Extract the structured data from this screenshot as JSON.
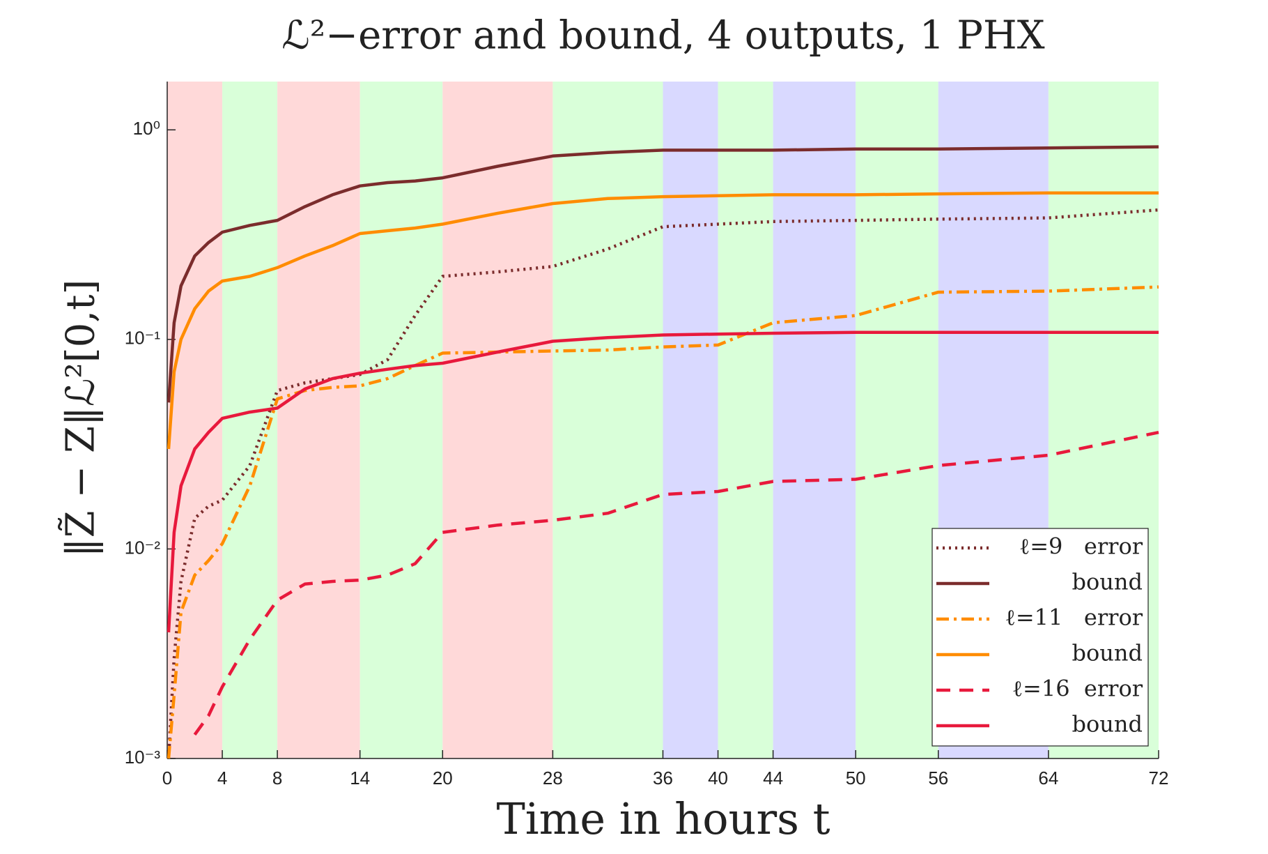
{
  "chart_data": {
    "type": "line",
    "title": "ℒ²−error and bound, 4 outputs, 1 PHX",
    "xlabel": "Time in hours t",
    "ylabel": "‖Z̃ − Z‖ℒ²[0,t]",
    "x": [
      0.1,
      0.5,
      1,
      2,
      3,
      4,
      6,
      8,
      10,
      12,
      14,
      16,
      18,
      20,
      24,
      28,
      32,
      36,
      40,
      44,
      50,
      56,
      64,
      72
    ],
    "series": [
      {
        "name": "ℓ=9   error",
        "color": "#7b2c2c",
        "dash": "dotted",
        "values": [
          0.001,
          0.003,
          0.007,
          0.014,
          0.016,
          0.0171,
          0.025,
          0.057,
          0.062,
          0.065,
          0.068,
          0.08,
          0.13,
          0.2,
          0.21,
          0.223,
          0.27,
          0.345,
          0.355,
          0.365,
          0.37,
          0.375,
          0.38,
          0.415
        ]
      },
      {
        "name": "bound",
        "color": "#7b2c2c",
        "dash": "solid",
        "values": [
          0.05,
          0.12,
          0.18,
          0.25,
          0.29,
          0.325,
          0.35,
          0.37,
          0.43,
          0.49,
          0.54,
          0.56,
          0.57,
          0.59,
          0.67,
          0.75,
          0.78,
          0.8,
          0.8,
          0.8,
          0.81,
          0.81,
          0.82,
          0.83
        ]
      },
      {
        "name": "ℓ=11   error",
        "color": "#ff8c00",
        "dash": "dashdot",
        "values": [
          0.001,
          0.002,
          0.005,
          0.0075,
          0.0088,
          0.0106,
          0.02,
          0.052,
          0.057,
          0.059,
          0.06,
          0.065,
          0.075,
          0.086,
          0.087,
          0.088,
          0.089,
          0.092,
          0.094,
          0.12,
          0.13,
          0.168,
          0.17,
          0.178
        ]
      },
      {
        "name": "bound",
        "color": "#ff8c00",
        "dash": "solid",
        "values": [
          0.03,
          0.07,
          0.1,
          0.14,
          0.17,
          0.19,
          0.2,
          0.22,
          0.25,
          0.28,
          0.32,
          0.33,
          0.34,
          0.355,
          0.4,
          0.445,
          0.47,
          0.48,
          0.485,
          0.49,
          0.49,
          0.495,
          0.5,
          0.5
        ]
      },
      {
        "name": "ℓ=16  error",
        "color": "#e8193c",
        "dash": "dashed",
        "values": [
          null,
          null,
          null,
          0.0013,
          0.0016,
          0.0022,
          0.0037,
          0.0057,
          0.0068,
          0.007,
          0.0071,
          0.0075,
          0.0085,
          0.012,
          0.013,
          0.0137,
          0.0148,
          0.0182,
          0.0188,
          0.021,
          0.0215,
          0.025,
          0.028,
          0.036
        ]
      },
      {
        "name": "bound",
        "color": "#e8193c",
        "dash": "solid",
        "values": [
          0.004,
          0.012,
          0.02,
          0.03,
          0.036,
          0.042,
          0.045,
          0.047,
          0.058,
          0.065,
          0.069,
          0.072,
          0.075,
          0.077,
          0.087,
          0.098,
          0.102,
          0.105,
          0.106,
          0.107,
          0.108,
          0.108,
          0.108,
          0.108
        ]
      }
    ],
    "regions": [
      {
        "start": 0,
        "end": 4,
        "color": "#ffd9d9"
      },
      {
        "start": 4,
        "end": 8,
        "color": "#d9ffd9"
      },
      {
        "start": 8,
        "end": 14,
        "color": "#ffd9d9"
      },
      {
        "start": 14,
        "end": 20,
        "color": "#d9ffd9"
      },
      {
        "start": 20,
        "end": 28,
        "color": "#ffd9d9"
      },
      {
        "start": 28,
        "end": 36,
        "color": "#d9ffd9"
      },
      {
        "start": 36,
        "end": 40,
        "color": "#d9d9ff"
      },
      {
        "start": 40,
        "end": 44,
        "color": "#d9ffd9"
      },
      {
        "start": 44,
        "end": 50,
        "color": "#d9d9ff"
      },
      {
        "start": 50,
        "end": 56,
        "color": "#d9ffd9"
      },
      {
        "start": 56,
        "end": 64,
        "color": "#d9d9ff"
      },
      {
        "start": 64,
        "end": 72,
        "color": "#d9ffd9"
      }
    ],
    "xlim": [
      0,
      72
    ],
    "xticks": [
      0,
      4,
      8,
      14,
      20,
      28,
      36,
      40,
      44,
      50,
      56,
      64,
      72
    ],
    "ylim": [
      0.001,
      1.7
    ],
    "yscale": "log",
    "yticks": [
      {
        "value": 0.001,
        "label": "10⁻³"
      },
      {
        "value": 0.01,
        "label": "10⁻²"
      },
      {
        "value": 0.1,
        "label": "10⁻¹"
      },
      {
        "value": 1,
        "label": "10⁰"
      }
    ],
    "legend": "lower right"
  }
}
